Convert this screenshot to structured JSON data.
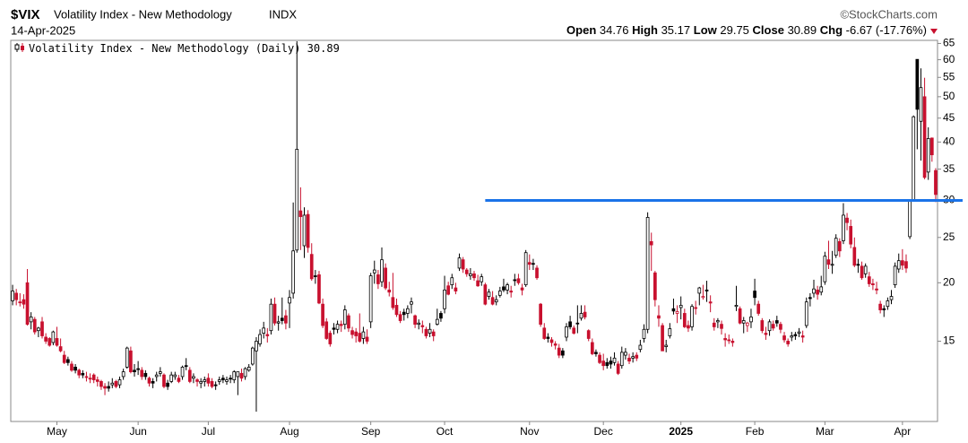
{
  "chart_data": {
    "type": "candlestick",
    "symbol": "$VIX",
    "title": "Volatility Index - New Methodology",
    "exchange": "INDX",
    "date": "14-Apr-2025",
    "source": "©StockCharts.com",
    "stat_labels": {
      "open": "Open",
      "high": "High",
      "low": "Low",
      "close": "Close",
      "change": "Chg"
    },
    "change": -6.67,
    "change_pct": {
      "value": -17.76,
      "label": "(-17.76%)"
    },
    "legend": "Volatility Index - New Methodology (Daily)",
    "up_color": "#000000",
    "down_color": "#c8102e",
    "log_scale": true,
    "grid": false,
    "ylim": [
      10.1,
      66
    ],
    "yticks": [
      15,
      20,
      25,
      30,
      35,
      40,
      45,
      50,
      55,
      60,
      65
    ],
    "xticks": [
      {
        "value": 12,
        "label": "May"
      },
      {
        "value": 34,
        "label": "Jun"
      },
      {
        "value": 53,
        "label": "Jul"
      },
      {
        "value": 75,
        "label": "Aug"
      },
      {
        "value": 97,
        "label": "Sep"
      },
      {
        "value": 117,
        "label": "Oct"
      },
      {
        "value": 140,
        "label": "Nov"
      },
      {
        "value": 160,
        "label": "Dec"
      },
      {
        "value": 181,
        "label": "2025"
      },
      {
        "value": 201,
        "label": "Feb"
      },
      {
        "value": 220,
        "label": "Mar"
      },
      {
        "value": 241,
        "label": "Apr"
      }
    ],
    "hline": {
      "value": 30,
      "color": "#1a73e8",
      "x_start_index": 128
    },
    "candles": [
      [
        18.3,
        19.8,
        17.9,
        19.2
      ],
      [
        19.0,
        19.4,
        17.9,
        18.4
      ],
      [
        18.2,
        19.0,
        17.8,
        18.2
      ],
      [
        18.4,
        18.9,
        17.6,
        18.0
      ],
      [
        20.0,
        21.4,
        16.2,
        16.3
      ],
      [
        16.5,
        17.3,
        15.9,
        16.9
      ],
      [
        16.7,
        16.9,
        15.5,
        15.7
      ],
      [
        15.8,
        16.1,
        15.3,
        16.0
      ],
      [
        16.5,
        16.9,
        15.2,
        15.4
      ],
      [
        15.3,
        15.6,
        14.8,
        15.0
      ],
      [
        15.2,
        15.3,
        14.6,
        14.7
      ],
      [
        14.9,
        15.8,
        14.7,
        15.7
      ],
      [
        15.2,
        16.1,
        14.6,
        14.7
      ],
      [
        14.6,
        15.2,
        14.2,
        14.3
      ],
      [
        14.0,
        14.3,
        13.4,
        13.5
      ],
      [
        13.7,
        13.9,
        13.3,
        13.5
      ],
      [
        13.4,
        13.6,
        12.9,
        13.0
      ],
      [
        13.2,
        13.4,
        12.8,
        13.0
      ],
      [
        13.0,
        13.1,
        12.5,
        12.7
      ],
      [
        12.8,
        13.0,
        12.5,
        12.7
      ],
      [
        12.6,
        12.9,
        12.3,
        12.6
      ],
      [
        12.5,
        12.8,
        12.2,
        12.5
      ],
      [
        12.7,
        12.8,
        12.2,
        12.4
      ],
      [
        12.4,
        12.6,
        12.0,
        12.3
      ],
      [
        12.3,
        12.4,
        11.8,
        12.0
      ],
      [
        12.0,
        12.2,
        11.5,
        11.9
      ],
      [
        12.0,
        12.3,
        11.7,
        11.9
      ],
      [
        12.1,
        12.5,
        11.9,
        12.2
      ],
      [
        12.3,
        12.4,
        11.9,
        12.0
      ],
      [
        12.1,
        12.6,
        11.9,
        12.4
      ],
      [
        12.6,
        13.1,
        12.4,
        12.9
      ],
      [
        13.2,
        14.6,
        13.1,
        14.5
      ],
      [
        14.3,
        14.6,
        12.8,
        12.9
      ],
      [
        13.0,
        13.4,
        12.6,
        12.9
      ],
      [
        13.1,
        13.6,
        12.7,
        13.1
      ],
      [
        13.0,
        13.2,
        12.4,
        12.6
      ],
      [
        12.8,
        13.0,
        12.4,
        12.6
      ],
      [
        12.5,
        12.6,
        12.0,
        12.2
      ],
      [
        12.3,
        12.5,
        11.9,
        12.2
      ],
      [
        12.6,
        12.9,
        12.3,
        12.7
      ],
      [
        12.8,
        13.2,
        12.6,
        12.9
      ],
      [
        12.7,
        12.8,
        11.9,
        12.0
      ],
      [
        12.2,
        12.4,
        11.8,
        12.0
      ],
      [
        12.3,
        12.9,
        12.2,
        12.7
      ],
      [
        12.6,
        12.9,
        12.4,
        12.7
      ],
      [
        12.5,
        12.7,
        12.2,
        12.3
      ],
      [
        12.6,
        13.3,
        12.4,
        13.2
      ],
      [
        13.3,
        13.8,
        13.0,
        13.3
      ],
      [
        13.0,
        13.2,
        12.2,
        12.3
      ],
      [
        12.5,
        12.8,
        12.2,
        12.6
      ],
      [
        12.4,
        12.5,
        12.0,
        12.3
      ],
      [
        12.2,
        12.5,
        11.9,
        12.3
      ],
      [
        12.3,
        12.6,
        12.0,
        12.4
      ],
      [
        12.5,
        12.8,
        12.0,
        12.2
      ],
      [
        12.3,
        12.5,
        11.9,
        12.0
      ],
      [
        12.1,
        12.3,
        11.8,
        12.1
      ],
      [
        12.3,
        12.6,
        12.1,
        12.4
      ],
      [
        12.5,
        12.7,
        12.2,
        12.4
      ],
      [
        12.3,
        12.6,
        12.1,
        12.4
      ],
      [
        12.5,
        12.7,
        12.2,
        12.5
      ],
      [
        12.4,
        13.0,
        12.2,
        12.9
      ],
      [
        12.6,
        12.9,
        11.5,
        12.9
      ],
      [
        12.8,
        13.1,
        12.3,
        12.5
      ],
      [
        12.6,
        13.2,
        12.4,
        13.1
      ],
      [
        13.0,
        13.4,
        12.9,
        13.2
      ],
      [
        13.4,
        14.6,
        13.3,
        14.5
      ],
      [
        14.3,
        15.3,
        10.6,
        15.0
      ],
      [
        14.8,
        15.9,
        14.6,
        15.5
      ],
      [
        15.6,
        16.5,
        15.2,
        16.0
      ],
      [
        15.5,
        16.0,
        14.9,
        15.4
      ],
      [
        15.8,
        18.5,
        15.5,
        18.0
      ],
      [
        18.0,
        18.6,
        16.2,
        16.4
      ],
      [
        16.4,
        17.0,
        15.8,
        16.5
      ],
      [
        16.8,
        18.6,
        16.3,
        16.6
      ],
      [
        17.0,
        17.5,
        15.9,
        16.4
      ],
      [
        18.1,
        19.3,
        16.0,
        18.6
      ],
      [
        19.0,
        29.7,
        18.5,
        23.4
      ],
      [
        23.5,
        65.7,
        23.2,
        38.6
      ],
      [
        28.5,
        32.0,
        23.5,
        27.7
      ],
      [
        24.0,
        29.0,
        22.6,
        27.9
      ],
      [
        28.0,
        28.6,
        23.2,
        23.8
      ],
      [
        23.0,
        24.3,
        20.2,
        20.4
      ],
      [
        20.7,
        21.3,
        19.9,
        20.7
      ],
      [
        20.8,
        21.2,
        18.0,
        18.1
      ],
      [
        18.0,
        18.5,
        16.0,
        16.2
      ],
      [
        16.5,
        16.8,
        15.1,
        15.2
      ],
      [
        15.6,
        15.8,
        14.6,
        14.8
      ],
      [
        16.0,
        16.4,
        15.5,
        15.9
      ],
      [
        15.9,
        16.6,
        15.6,
        16.3
      ],
      [
        16.3,
        16.6,
        15.7,
        16.2
      ],
      [
        16.3,
        17.9,
        15.9,
        17.5
      ],
      [
        17.0,
        17.2,
        15.7,
        16.0
      ],
      [
        15.8,
        16.1,
        15.2,
        15.5
      ],
      [
        15.7,
        16.0,
        14.9,
        15.4
      ],
      [
        15.6,
        17.2,
        14.9,
        15.0
      ],
      [
        15.2,
        16.1,
        14.8,
        15.7
      ],
      [
        15.3,
        15.9,
        14.8,
        15.0
      ],
      [
        16.5,
        21.0,
        16.0,
        20.7
      ],
      [
        21.0,
        22.3,
        19.9,
        21.3
      ],
      [
        20.8,
        21.3,
        19.4,
        19.9
      ],
      [
        20.1,
        23.8,
        19.6,
        22.4
      ],
      [
        21.5,
        22.0,
        19.3,
        19.5
      ],
      [
        19.3,
        20.1,
        18.7,
        19.1
      ],
      [
        18.6,
        21.0,
        17.5,
        17.7
      ],
      [
        17.9,
        18.5,
        16.9,
        17.1
      ],
      [
        17.1,
        17.4,
        16.4,
        16.6
      ],
      [
        17.3,
        17.6,
        16.6,
        17.1
      ],
      [
        17.2,
        17.9,
        16.8,
        17.6
      ],
      [
        18.0,
        18.6,
        17.2,
        18.2
      ],
      [
        17.0,
        17.1,
        16.0,
        16.3
      ],
      [
        16.3,
        16.7,
        15.9,
        16.4
      ],
      [
        16.2,
        16.6,
        15.6,
        16.1
      ],
      [
        15.9,
        16.1,
        15.2,
        15.4
      ],
      [
        15.6,
        16.4,
        15.3,
        15.9
      ],
      [
        15.7,
        15.9,
        15.0,
        15.4
      ],
      [
        16.3,
        17.6,
        16.2,
        16.7
      ],
      [
        17.2,
        17.4,
        16.5,
        16.8
      ],
      [
        17.6,
        20.7,
        17.2,
        19.3
      ],
      [
        19.7,
        20.1,
        18.8,
        18.9
      ],
      [
        19.8,
        20.9,
        19.4,
        20.5
      ],
      [
        19.5,
        20.0,
        18.9,
        19.2
      ],
      [
        21.5,
        23.1,
        21.2,
        22.6
      ],
      [
        22.4,
        22.7,
        21.0,
        21.4
      ],
      [
        21.3,
        21.5,
        20.6,
        20.9
      ],
      [
        20.7,
        21.5,
        20.3,
        20.9
      ],
      [
        20.9,
        21.2,
        20.2,
        20.5
      ],
      [
        20.2,
        20.8,
        19.6,
        19.7
      ],
      [
        20.1,
        20.9,
        19.7,
        20.6
      ],
      [
        19.8,
        20.0,
        17.9,
        18.0
      ],
      [
        18.7,
        19.4,
        18.4,
        19.1
      ],
      [
        18.6,
        19.2,
        17.9,
        18.0
      ],
      [
        18.2,
        18.8,
        17.9,
        18.4
      ],
      [
        18.8,
        19.6,
        18.6,
        19.2
      ],
      [
        19.6,
        20.4,
        19.1,
        19.3
      ],
      [
        19.3,
        20.0,
        18.9,
        19.8
      ],
      [
        19.2,
        19.7,
        18.6,
        19.1
      ],
      [
        20.3,
        20.9,
        19.7,
        20.3
      ],
      [
        20.4,
        20.9,
        19.8,
        20.0
      ],
      [
        19.5,
        19.9,
        18.8,
        19.3
      ],
      [
        19.8,
        23.5,
        19.6,
        23.2
      ],
      [
        22.1,
        23.0,
        21.3,
        21.9
      ],
      [
        22.0,
        22.5,
        21.3,
        22.0
      ],
      [
        21.5,
        21.8,
        20.3,
        20.5
      ],
      [
        18.0,
        18.1,
        16.1,
        16.3
      ],
      [
        16.0,
        16.4,
        15.1,
        15.2
      ],
      [
        15.3,
        15.6,
        14.9,
        15.2
      ],
      [
        15.1,
        15.3,
        14.6,
        14.9
      ],
      [
        14.8,
        15.0,
        14.4,
        14.7
      ],
      [
        14.5,
        14.8,
        13.8,
        14.0
      ],
      [
        14.3,
        14.5,
        13.8,
        14.0
      ],
      [
        15.3,
        16.4,
        15.0,
        16.1
      ],
      [
        16.5,
        17.0,
        15.9,
        16.1
      ],
      [
        16.0,
        16.2,
        15.5,
        15.6
      ],
      [
        16.4,
        17.9,
        15.6,
        16.4
      ],
      [
        16.8,
        17.9,
        16.6,
        17.2
      ],
      [
        17.3,
        17.9,
        16.7,
        16.9
      ],
      [
        15.8,
        15.9,
        15.0,
        15.2
      ],
      [
        14.9,
        15.2,
        14.0,
        14.1
      ],
      [
        14.2,
        14.4,
        13.9,
        14.1
      ],
      [
        14.0,
        14.2,
        13.4,
        13.5
      ],
      [
        13.6,
        14.1,
        13.0,
        13.3
      ],
      [
        13.5,
        13.8,
        13.1,
        13.3
      ],
      [
        13.6,
        13.9,
        13.1,
        13.4
      ],
      [
        13.5,
        14.2,
        13.3,
        13.8
      ],
      [
        13.4,
        13.6,
        12.7,
        12.8
      ],
      [
        13.3,
        14.6,
        13.1,
        14.2
      ],
      [
        14.0,
        14.5,
        13.7,
        14.2
      ],
      [
        13.8,
        14.1,
        13.4,
        13.6
      ],
      [
        13.8,
        14.2,
        13.5,
        13.9
      ],
      [
        14.0,
        14.2,
        13.6,
        13.8
      ],
      [
        14.4,
        15.1,
        14.2,
        14.7
      ],
      [
        15.2,
        16.3,
        14.9,
        15.9
      ],
      [
        15.9,
        28.3,
        15.6,
        27.6
      ],
      [
        24.5,
        25.6,
        21.2,
        24.1
      ],
      [
        21.0,
        21.2,
        17.8,
        18.4
      ],
      [
        17.0,
        17.9,
        16.1,
        16.8
      ],
      [
        16.2,
        16.4,
        14.3,
        14.3
      ],
      [
        14.6,
        15.1,
        14.2,
        14.7
      ],
      [
        15.4,
        16.4,
        15.2,
        15.95
      ],
      [
        17.6,
        18.5,
        17.1,
        17.4
      ],
      [
        17.2,
        17.9,
        16.4,
        17.35
      ],
      [
        17.7,
        18.7,
        16.7,
        17.9
      ],
      [
        17.2,
        17.6,
        16.0,
        16.1
      ],
      [
        16.2,
        16.6,
        15.7,
        16.0
      ],
      [
        16.1,
        18.0,
        15.8,
        17.8
      ],
      [
        17.7,
        18.3,
        17.1,
        17.7
      ],
      [
        19.0,
        19.6,
        17.9,
        19.5
      ],
      [
        18.6,
        19.8,
        18.4,
        18.7
      ],
      [
        19.3,
        20.2,
        18.2,
        19.2
      ],
      [
        18.2,
        18.8,
        17.3,
        18.1
      ],
      [
        16.4,
        16.8,
        15.8,
        16.1
      ],
      [
        16.5,
        16.8,
        16.0,
        16.6
      ],
      [
        16.3,
        16.6,
        15.5,
        15.97
      ],
      [
        15.2,
        15.6,
        14.6,
        15.1
      ],
      [
        15.1,
        15.5,
        14.8,
        15.06
      ],
      [
        15.0,
        15.2,
        14.6,
        14.9
      ],
      [
        17.8,
        19.7,
        17.4,
        17.9
      ],
      [
        17.6,
        17.8,
        16.3,
        16.4
      ],
      [
        16.4,
        16.9,
        15.6,
        16.6
      ],
      [
        16.2,
        16.5,
        15.7,
        16.4
      ],
      [
        16.5,
        17.6,
        16.0,
        16.9
      ],
      [
        19.2,
        20.4,
        17.9,
        18.6
      ],
      [
        18.0,
        18.3,
        17.0,
        17.2
      ],
      [
        16.6,
        16.8,
        15.6,
        15.8
      ],
      [
        15.6,
        16.1,
        15.1,
        15.5
      ],
      [
        15.8,
        16.7,
        15.4,
        16.5
      ],
      [
        16.3,
        16.6,
        15.8,
        16.0
      ],
      [
        16.6,
        17.0,
        16.1,
        16.4
      ],
      [
        16.3,
        16.5,
        15.6,
        15.9
      ],
      [
        15.4,
        15.7,
        14.9,
        15.1
      ],
      [
        15.0,
        15.2,
        14.6,
        14.8
      ],
      [
        15.3,
        15.7,
        15.0,
        15.4
      ],
      [
        15.5,
        15.7,
        15.1,
        15.4
      ],
      [
        15.6,
        16.0,
        15.3,
        15.7
      ],
      [
        15.4,
        15.8,
        14.9,
        15.3
      ],
      [
        16.2,
        18.6,
        16.0,
        18.2
      ],
      [
        18.6,
        19.0,
        17.8,
        18.5
      ],
      [
        19.0,
        20.3,
        18.6,
        19.4
      ],
      [
        19.3,
        19.7,
        18.4,
        18.9
      ],
      [
        19.1,
        20.7,
        18.8,
        19.6
      ],
      [
        20.1,
        23.3,
        19.8,
        22.8
      ],
      [
        22.4,
        24.6,
        21.4,
        21.9
      ],
      [
        21.8,
        23.4,
        20.9,
        21.9
      ],
      [
        22.9,
        25.4,
        22.6,
        24.9
      ],
      [
        24.5,
        24.9,
        22.7,
        23.4
      ],
      [
        24.6,
        29.6,
        24.2,
        27.9
      ],
      [
        27.5,
        28.2,
        25.9,
        26.9
      ],
      [
        26.4,
        27.3,
        23.7,
        24.2
      ],
      [
        23.8,
        25.0,
        21.6,
        21.8
      ],
      [
        21.9,
        22.5,
        21.0,
        21.8
      ],
      [
        21.7,
        22.2,
        20.3,
        20.5
      ],
      [
        20.9,
        22.0,
        20.5,
        21.7
      ],
      [
        20.6,
        21.1,
        19.6,
        19.9
      ],
      [
        19.9,
        20.4,
        19.3,
        19.8
      ],
      [
        19.4,
        20.1,
        18.9,
        19.3
      ],
      [
        18.0,
        18.3,
        17.2,
        17.5
      ],
      [
        17.6,
        17.9,
        16.9,
        17.5
      ],
      [
        17.8,
        18.6,
        17.5,
        18.3
      ],
      [
        18.4,
        19.3,
        18.0,
        18.7
      ],
      [
        19.8,
        22.1,
        19.5,
        21.7
      ],
      [
        21.4,
        23.1,
        21.0,
        22.3
      ],
      [
        22.3,
        23.6,
        21.3,
        21.8
      ],
      [
        22.2,
        23.0,
        21.0,
        21.5
      ],
      [
        25.1,
        30.0,
        24.8,
        30.0
      ],
      [
        30.1,
        45.6,
        29.9,
        45.3
      ],
      [
        60.1,
        60.1,
        38.6,
        47.0
      ],
      [
        44.3,
        57.5,
        36.5,
        52.3
      ],
      [
        50.0,
        54.9,
        33.3,
        33.6
      ],
      [
        34.5,
        43.0,
        33.2,
        40.7
      ],
      [
        40.8,
        40.9,
        36.3,
        37.56
      ],
      [
        34.76,
        35.17,
        29.75,
        30.89
      ]
    ]
  }
}
